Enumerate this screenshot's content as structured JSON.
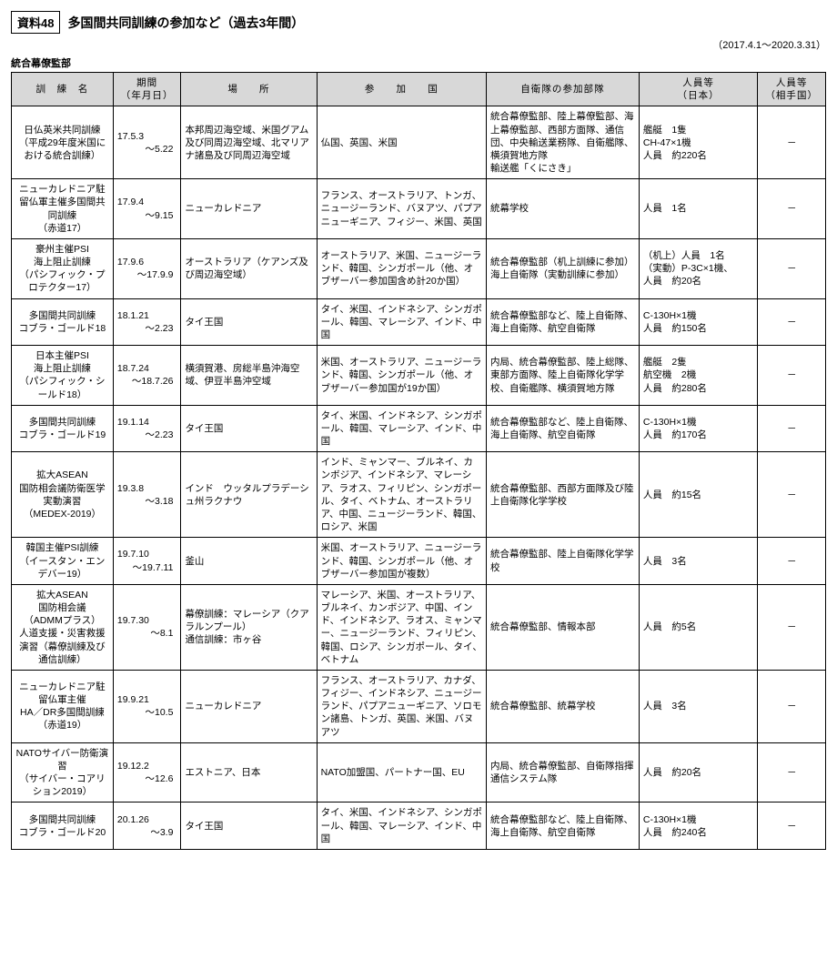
{
  "header": {
    "ref_label": "資料48",
    "title": "多国間共同訓練の参加など（過去3年間）",
    "date_range": "（2017.4.1～2020.3.31）",
    "subhead": "統合幕僚監部"
  },
  "columns": [
    "訓　練　名",
    "期間\n（年月日）",
    "場　　所",
    "参　　加　　国",
    "自衛隊の参加部隊",
    "人員等\n（日本）",
    "人員等\n（相手国）"
  ],
  "rows": [
    {
      "name": "日仏英米共同訓練\n（平成29年度米国における統合訓練）",
      "period_start": "17.5.3",
      "period_end": "～5.22",
      "place": "本邦周辺海空域、米国グアム及び同周辺海空域、北マリアナ諸島及び同周辺海空域",
      "participants": "仏国、英国、米国",
      "jsdf": "統合幕僚監部、陸上幕僚監部、海上幕僚監部、西部方面隊、通信団、中央輸送業務隊、自衛艦隊、横須賀地方隊\n輸送艦「くにさき」",
      "jp": "艦艇　1隻\nCH-47×1機\n人員　約220名",
      "other": "－"
    },
    {
      "name": "ニューカレドニア駐留仏軍主催多国間共同訓練\n（赤道17）",
      "period_start": "17.9.4",
      "period_end": "～9.15",
      "place": "ニューカレドニア",
      "participants": "フランス、オーストラリア、トンガ、ニュージーランド、バヌアツ、パプアニューギニア、フィジー、米国、英国",
      "jsdf": "統幕学校",
      "jp": "人員　1名",
      "other": "－"
    },
    {
      "name": "豪州主催PSI\n海上阻止訓練\n（パシフィック・プロテクター17）",
      "period_start": "17.9.6",
      "period_end": "～17.9.9",
      "place": "オーストラリア（ケアンズ及び周辺海空域）",
      "participants": "オーストラリア、米国、ニュージーランド、韓国、シンガポール（他、オブザーバー参加国含め計20か国）",
      "jsdf": "統合幕僚監部（机上訓練に参加）\n海上自衛隊（実動訓練に参加）",
      "jp": "（机上）人員　1名\n（実動）P-3C×1機、\n人員　約20名",
      "other": "－"
    },
    {
      "name": "多国間共同訓練\nコブラ・ゴールド18",
      "period_start": "18.1.21",
      "period_end": "～2.23",
      "place": "タイ王国",
      "participants": "タイ、米国、インドネシア、シンガポール、韓国、マレーシア、インド、中国",
      "jsdf": "統合幕僚監部など、陸上自衛隊、海上自衛隊、航空自衛隊",
      "jp": "C-130H×1機\n人員　約150名",
      "other": "－"
    },
    {
      "name": "日本主催PSI\n海上阻止訓練\n（パシフィック・シールド18）",
      "period_start": "18.7.24",
      "period_end": "～18.7.26",
      "place": "横須賀港、房総半島沖海空域、伊豆半島沖空域",
      "participants": "米国、オーストラリア、ニュージーランド、韓国、シンガポール（他、オブザーバー参加国が19か国）",
      "jsdf": "内局、統合幕僚監部、陸上総隊、東部方面隊、陸上自衛隊化学学校、自衛艦隊、横須賀地方隊",
      "jp": "艦艇　2隻\n航空機　2機\n人員　約280名",
      "other": "－"
    },
    {
      "name": "多国間共同訓練\nコブラ・ゴールド19",
      "period_start": "19.1.14",
      "period_end": "～2.23",
      "place": "タイ王国",
      "participants": "タイ、米国、インドネシア、シンガポール、韓国、マレーシア、インド、中国",
      "jsdf": "統合幕僚監部など、陸上自衛隊、海上自衛隊、航空自衛隊",
      "jp": "C-130H×1機\n人員　約170名",
      "other": "－"
    },
    {
      "name": "拡大ASEAN\n国防相会議防衛医学実動演習\n（MEDEX-2019）",
      "period_start": "19.3.8",
      "period_end": "～3.18",
      "place": "インド　ウッタルプラデーシュ州ラクナウ",
      "participants": "インド、ミャンマー、ブルネイ、カンボジア、インドネシア、マレーシア、ラオス、フィリピン、シンガポール、タイ、ベトナム、オーストラリア、中国、ニュージーランド、韓国、ロシア、米国",
      "jsdf": "統合幕僚監部、西部方面隊及び陸上自衛隊化学学校",
      "jp": "人員　約15名",
      "other": "－"
    },
    {
      "name": "韓国主催PSI訓練\n（イースタン・エンデバー19）",
      "period_start": "19.7.10",
      "period_end": "～19.7.11",
      "place": "釜山",
      "participants": "米国、オーストラリア、ニュージーランド、韓国、シンガポール（他、オブザーバー参加国が複数）",
      "jsdf": "統合幕僚監部、陸上自衛隊化学学校",
      "jp": "人員　3名",
      "other": "－"
    },
    {
      "name": "拡大ASEAN\n国防相会議\n（ADMMプラス）\n人道支援・災害救援演習（幕僚訓練及び通信訓練）",
      "period_start": "19.7.30",
      "period_end": "～8.1",
      "place": "幕僚訓練：マレーシア（クアラルンプール）\n通信訓練：市ヶ谷",
      "participants": "マレーシア、米国、オーストラリア、ブルネイ、カンボジア、中国、インド、インドネシア、ラオス、ミャンマー、ニュージーランド、フィリピン、韓国、ロシア、シンガポール、タイ、ベトナム",
      "jsdf": "統合幕僚監部、情報本部",
      "jp": "人員　約5名",
      "other": "－"
    },
    {
      "name": "ニューカレドニア駐留仏軍主催\nHA／DR多国間訓練\n（赤道19）",
      "period_start": "19.9.21",
      "period_end": "～10.5",
      "place": "ニューカレドニア",
      "participants": "フランス、オーストラリア、カナダ、フィジー、インドネシア、ニュージーランド、パプアニューギニア、ソロモン諸島、トンガ、英国、米国、バヌアツ",
      "jsdf": "統合幕僚監部、統幕学校",
      "jp": "人員　3名",
      "other": "－"
    },
    {
      "name": "NATOサイバー防衛演習\n（サイバー・コアリション2019）",
      "period_start": "19.12.2",
      "period_end": "～12.6",
      "place": "エストニア、日本",
      "participants": "NATO加盟国、パートナー国、EU",
      "jsdf": "内局、統合幕僚監部、自衛隊指揮通信システム隊",
      "jp": "人員　約20名",
      "other": "－"
    },
    {
      "name": "多国間共同訓練\nコブラ・ゴールド20",
      "period_start": "20.1.26",
      "period_end": "～3.9",
      "place": "タイ王国",
      "participants": "タイ、米国、インドネシア、シンガポール、韓国、マレーシア、インド、中国",
      "jsdf": "統合幕僚監部など、陸上自衛隊、海上自衛隊、航空自衛隊",
      "jp": "C-130H×1機\n人員　約240名",
      "other": "－"
    }
  ]
}
